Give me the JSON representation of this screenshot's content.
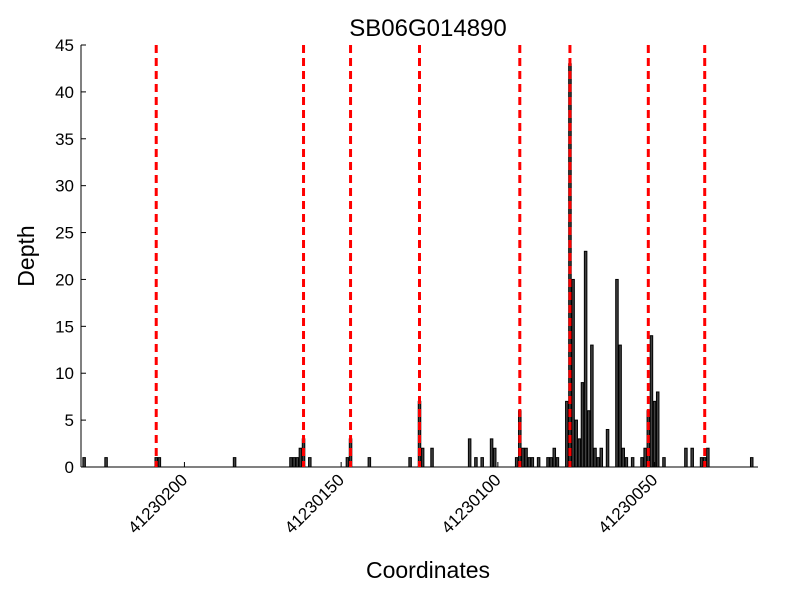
{
  "chart_data": {
    "type": "bar",
    "title": "SB06G014890",
    "xlabel": "Coordinates",
    "ylabel": "Depth",
    "x_reversed": true,
    "xlim": [
      41230233,
      41230017
    ],
    "ylim": [
      0,
      45
    ],
    "grid": false,
    "legend": "none",
    "colors": {
      "bar_fill": "#404040",
      "bar_edge": "#000000",
      "marker": "#ff0000"
    },
    "y_ticks": [
      0,
      5,
      10,
      15,
      20,
      25,
      30,
      35,
      40,
      45
    ],
    "x_ticks": [
      41230200,
      41230150,
      41230100,
      41230050
    ],
    "x_tick_labels": [
      "41230200",
      "41230150",
      "41230100",
      "41230050"
    ],
    "markers": [
      41230209,
      41230162,
      41230147,
      41230125,
      41230093,
      41230077,
      41230052,
      41230034
    ],
    "series": [
      {
        "x": [
          41230232,
          41230225,
          41230209,
          41230208,
          41230184,
          41230166,
          41230165,
          41230164,
          41230163,
          41230162,
          41230160,
          41230148,
          41230147,
          41230141,
          41230128,
          41230125,
          41230124,
          41230121,
          41230109,
          41230107,
          41230105,
          41230102,
          41230101,
          41230094,
          41230093,
          41230092,
          41230091,
          41230090,
          41230089,
          41230087,
          41230084,
          41230083,
          41230082,
          41230081,
          41230078,
          41230077,
          41230076,
          41230075,
          41230074,
          41230073,
          41230072,
          41230071,
          41230070,
          41230069,
          41230068,
          41230067,
          41230065,
          41230062,
          41230061,
          41230060,
          41230059,
          41230057,
          41230054,
          41230053,
          41230052,
          41230051,
          41230050,
          41230049,
          41230047,
          41230040,
          41230038,
          41230035,
          41230034,
          41230033,
          41230019
        ],
        "values": [
          1,
          1,
          1,
          1,
          1,
          1,
          1,
          1,
          2,
          3,
          1,
          1,
          3,
          1,
          1,
          7,
          2,
          2,
          3,
          1,
          1,
          3,
          2,
          1,
          6,
          2,
          2,
          1,
          1,
          1,
          1,
          1,
          2,
          1,
          7,
          43,
          20,
          5,
          3,
          9,
          23,
          6,
          13,
          2,
          1,
          2,
          4,
          20,
          13,
          2,
          1,
          1,
          1,
          2,
          6,
          14,
          7,
          8,
          1,
          2,
          2,
          1,
          1,
          2,
          1
        ]
      }
    ]
  }
}
